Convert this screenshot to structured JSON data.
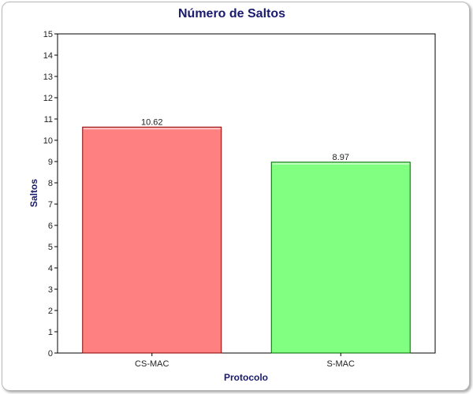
{
  "chart_data": {
    "type": "bar",
    "title": "Número de Saltos",
    "xlabel": "Protocolo",
    "ylabel": "Saltos",
    "categories": [
      "CS-MAC",
      "S-MAC"
    ],
    "values": [
      10.62,
      8.97
    ],
    "value_labels": [
      "10.62",
      "8.97"
    ],
    "ylim": [
      0,
      15
    ],
    "yticks": [
      "0",
      "1",
      "2",
      "3",
      "4",
      "5",
      "6",
      "7",
      "8",
      "9",
      "10",
      "11",
      "12",
      "13",
      "14",
      "15"
    ],
    "grid": false,
    "legend": "none",
    "colors": [
      "#ff8080",
      "#80ff80"
    ],
    "edge_colors": [
      "#8b0000",
      "#006400"
    ]
  }
}
